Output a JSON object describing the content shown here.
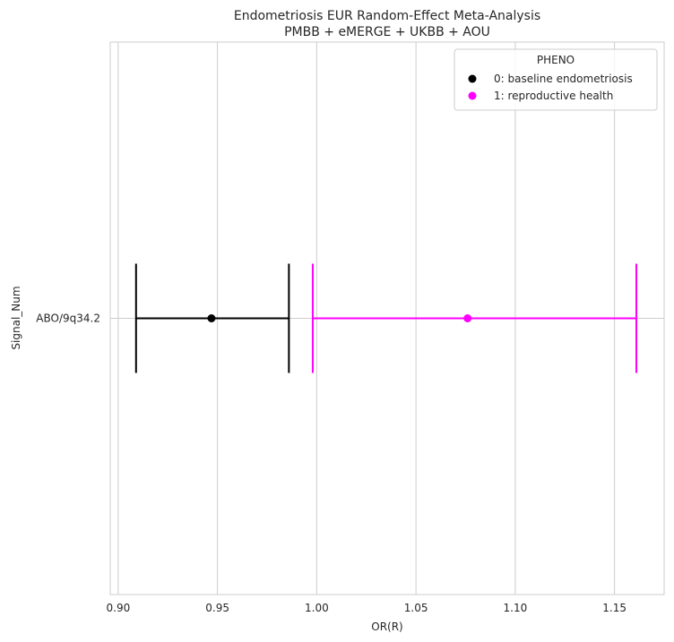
{
  "chart_data": {
    "type": "scatter",
    "title": "Endometriosis EUR Random-Effect Meta-Analysis",
    "subtitle": "PMBB + eMERGE + UKBB + AOU",
    "xlabel": "OR(R)",
    "ylabel": "Signal_Num",
    "xlim": [
      0.896,
      1.175
    ],
    "xticks": [
      "0.90",
      "0.95",
      "1.00",
      "1.05",
      "1.10",
      "1.15"
    ],
    "xtick_values": [
      0.9,
      0.95,
      1.0,
      1.05,
      1.1,
      1.15
    ],
    "categories": [
      "ABO/9q34.2"
    ],
    "grid": true,
    "legend": {
      "title": "PHENO",
      "position": "top-right",
      "entries": [
        "0: baseline endometriosis",
        "1: reproductive health"
      ]
    },
    "series": [
      {
        "name": "0: baseline endometriosis",
        "color": "#000000",
        "points": [
          {
            "category": "ABO/9q34.2",
            "or": 0.947,
            "ci_low": 0.909,
            "ci_high": 0.986
          }
        ]
      },
      {
        "name": "1: reproductive health",
        "color": "#ff00ff",
        "points": [
          {
            "category": "ABO/9q34.2",
            "or": 1.076,
            "ci_low": 0.998,
            "ci_high": 1.161
          }
        ]
      }
    ]
  }
}
